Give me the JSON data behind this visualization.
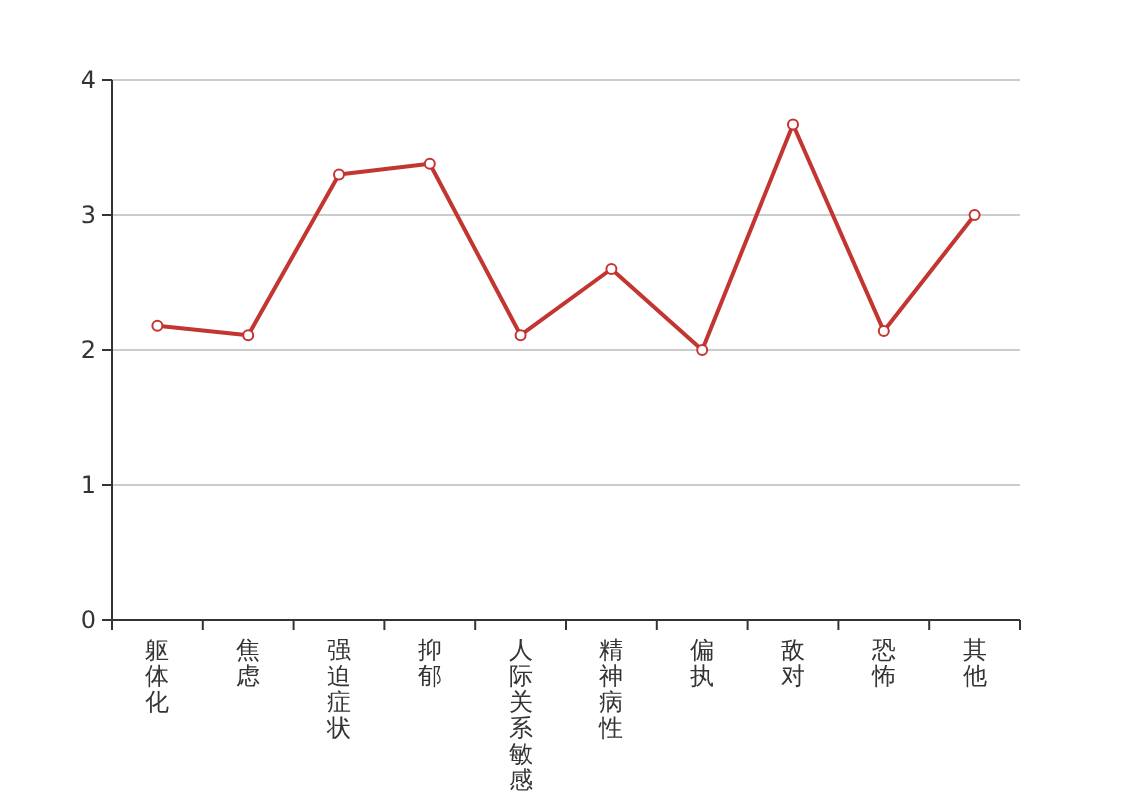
{
  "chart_data": {
    "type": "line",
    "categories": [
      "躯体化",
      "焦虑",
      "强迫症状",
      "抑郁",
      "人际关系敏感",
      "精神病性",
      "偏执",
      "敌对",
      "恐怖",
      "其他"
    ],
    "series": [
      {
        "color": "#c23531",
        "values": [
          2.18,
          2.11,
          3.3,
          3.38,
          2.11,
          2.6,
          2.0,
          3.67,
          2.14,
          3.0
        ]
      }
    ],
    "ylim": [
      0,
      4
    ],
    "yticks": [
      0,
      1,
      2,
      3,
      4
    ],
    "grid": "y",
    "marker": "circle",
    "line_style": "solid"
  }
}
